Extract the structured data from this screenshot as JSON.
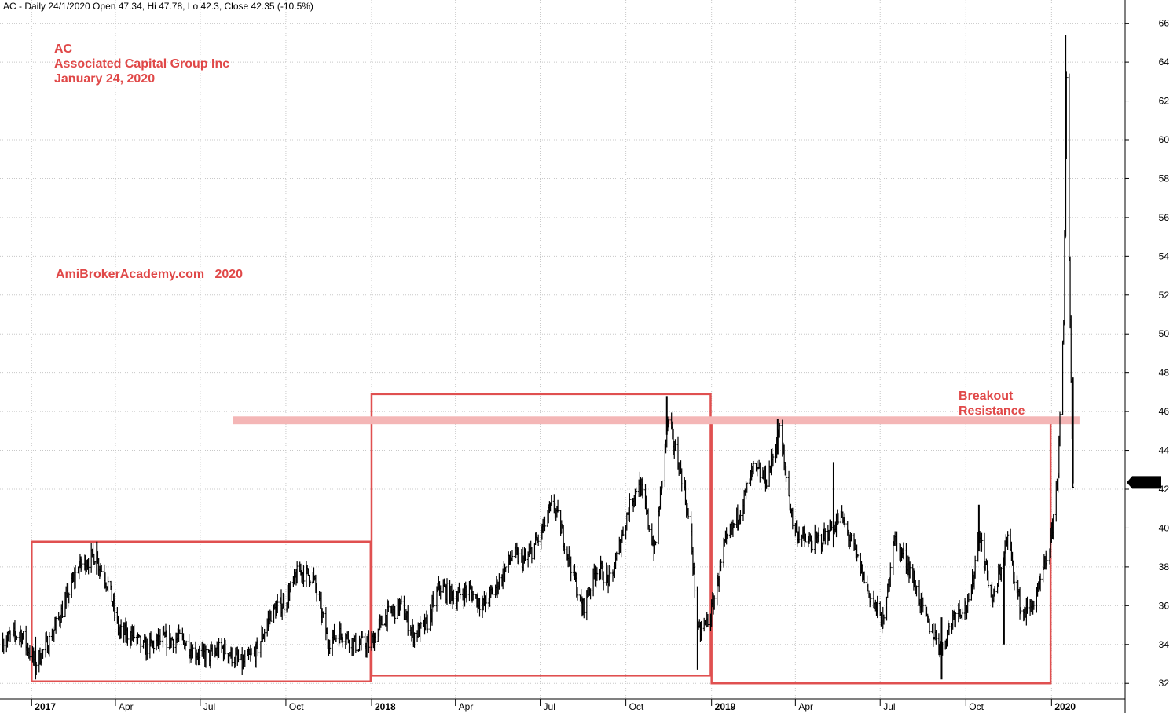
{
  "header": {
    "symbol": "AC",
    "info": "AC - Daily 24/1/2020 Open 47.34, Hi 47.78, Lo 42.3, Close 42.35 (-10.5%)"
  },
  "annotations": {
    "ticker": "AC",
    "company": "Associated Capital Group Inc",
    "date": "January 24, 2020",
    "watermark": "AmiBrokerAcademy.com   2020",
    "breakout": "Breakout",
    "resistance": "Resistance",
    "last_price_tag": "42.35"
  },
  "colors": {
    "price_bars": "#000000",
    "boxes": "#e05050",
    "resistance_band": "#f4b6b6",
    "grid": "#c8c8c8",
    "annotation_text": "#e04848",
    "price_tag_bg": "#000000",
    "price_tag_text": "#ffffff"
  },
  "chart_data": {
    "type": "ohlc",
    "title": "AC - Daily 24/1/2020 Open 47.34, Hi 47.78, Lo 42.3, Close 42.35 (-10.5%)",
    "x_range": [
      "2016-11-28",
      "2020-03-20"
    ],
    "ylim": [
      31.2,
      67.2
    ],
    "y_ticks": [
      32,
      34,
      36,
      38,
      40,
      42,
      44,
      46,
      48,
      50,
      52,
      54,
      56,
      58,
      60,
      62,
      64,
      66
    ],
    "y_axis_side": "right",
    "grid": true,
    "x_ticks": [
      {
        "date": "2017-01-01",
        "label": "2017",
        "year": true
      },
      {
        "date": "2017-04-01",
        "label": "Apr",
        "year": false
      },
      {
        "date": "2017-07-01",
        "label": "Jul",
        "year": false
      },
      {
        "date": "2017-10-01",
        "label": "Oct",
        "year": false
      },
      {
        "date": "2018-01-01",
        "label": "2018",
        "year": true
      },
      {
        "date": "2018-04-01",
        "label": "Apr",
        "year": false
      },
      {
        "date": "2018-07-01",
        "label": "Jul",
        "year": false
      },
      {
        "date": "2018-10-01",
        "label": "Oct",
        "year": false
      },
      {
        "date": "2019-01-01",
        "label": "2019",
        "year": true
      },
      {
        "date": "2019-04-01",
        "label": "Apr",
        "year": false
      },
      {
        "date": "2019-07-01",
        "label": "Jul",
        "year": false
      },
      {
        "date": "2019-10-01",
        "label": "Oct",
        "year": false
      },
      {
        "date": "2020-01-01",
        "label": "2020",
        "year": true
      }
    ],
    "price_path": [
      [
        "2016-12-01",
        34.2
      ],
      [
        "2016-12-20",
        34.6
      ],
      [
        "2017-01-05",
        33.0
      ],
      [
        "2017-01-20",
        34.2
      ],
      [
        "2017-02-05",
        36.0
      ],
      [
        "2017-02-20",
        38.0
      ],
      [
        "2017-03-10",
        38.6
      ],
      [
        "2017-03-25",
        37.0
      ],
      [
        "2017-04-05",
        34.6
      ],
      [
        "2017-04-20",
        34.5
      ],
      [
        "2017-05-01",
        33.8
      ],
      [
        "2017-05-20",
        34.2
      ],
      [
        "2017-06-10",
        34.3
      ],
      [
        "2017-06-25",
        33.6
      ],
      [
        "2017-07-10",
        33.4
      ],
      [
        "2017-07-25",
        33.8
      ],
      [
        "2017-08-15",
        33.0
      ],
      [
        "2017-08-30",
        33.6
      ],
      [
        "2017-09-15",
        35.6
      ],
      [
        "2017-09-30",
        36.2
      ],
      [
        "2017-10-15",
        37.8
      ],
      [
        "2017-10-30",
        37.5
      ],
      [
        "2017-11-15",
        34.2
      ],
      [
        "2017-11-30",
        34.6
      ],
      [
        "2017-12-15",
        34.0
      ],
      [
        "2017-12-31",
        34.0
      ],
      [
        "2018-01-15",
        35.4
      ],
      [
        "2018-02-01",
        36.0
      ],
      [
        "2018-02-15",
        34.5
      ],
      [
        "2018-03-01",
        35.0
      ],
      [
        "2018-03-15",
        37.0
      ],
      [
        "2018-04-01",
        36.4
      ],
      [
        "2018-04-15",
        36.8
      ],
      [
        "2018-05-01",
        36.0
      ],
      [
        "2018-05-15",
        37.0
      ],
      [
        "2018-06-01",
        38.6
      ],
      [
        "2018-06-15",
        38.3
      ],
      [
        "2018-07-01",
        39.6
      ],
      [
        "2018-07-15",
        41.3
      ],
      [
        "2018-08-01",
        38.5
      ],
      [
        "2018-08-15",
        35.8
      ],
      [
        "2018-08-31",
        38.0
      ],
      [
        "2018-09-15",
        37.2
      ],
      [
        "2018-10-01",
        40.5
      ],
      [
        "2018-10-15",
        42.5
      ],
      [
        "2018-11-01",
        38.8
      ],
      [
        "2018-11-15",
        45.5
      ],
      [
        "2018-12-01",
        42.5
      ],
      [
        "2018-12-10",
        39.5
      ],
      [
        "2018-12-18",
        34.5
      ],
      [
        "2018-12-31",
        35.5
      ],
      [
        "2019-01-15",
        39.0
      ],
      [
        "2019-02-01",
        41.0
      ],
      [
        "2019-02-15",
        43.0
      ],
      [
        "2019-03-01",
        42.5
      ],
      [
        "2019-03-15",
        45.0
      ],
      [
        "2019-03-30",
        40.0
      ],
      [
        "2019-04-15",
        39.2
      ],
      [
        "2019-05-01",
        39.5
      ],
      [
        "2019-05-20",
        40.6
      ],
      [
        "2019-06-05",
        38.6
      ],
      [
        "2019-06-20",
        36.5
      ],
      [
        "2019-07-05",
        35.0
      ],
      [
        "2019-07-15",
        39.5
      ],
      [
        "2019-08-01",
        38.0
      ],
      [
        "2019-08-20",
        35.2
      ],
      [
        "2019-09-05",
        33.8
      ],
      [
        "2019-09-20",
        35.8
      ],
      [
        "2019-10-05",
        36.0
      ],
      [
        "2019-10-15",
        39.8
      ],
      [
        "2019-10-30",
        36.2
      ],
      [
        "2019-11-15",
        39.5
      ],
      [
        "2019-11-30",
        35.5
      ],
      [
        "2019-12-15",
        36.2
      ],
      [
        "2019-12-31",
        39.2
      ],
      [
        "2020-01-08",
        43.0
      ],
      [
        "2020-01-14",
        50.5
      ],
      [
        "2020-01-17",
        63.5
      ],
      [
        "2020-01-20",
        54.0
      ],
      [
        "2020-01-22",
        47.5
      ],
      [
        "2020-01-24",
        42.35
      ]
    ],
    "spikes": [
      {
        "date": "2017-01-05",
        "low": 32.2,
        "high": 34.4
      },
      {
        "date": "2017-03-12",
        "low": 37.6,
        "high": 39.3
      },
      {
        "date": "2018-11-14",
        "low": 44.8,
        "high": 46.8
      },
      {
        "date": "2018-12-17",
        "low": 32.7,
        "high": 37.0
      },
      {
        "date": "2019-03-13",
        "low": 43.8,
        "high": 45.6
      },
      {
        "date": "2019-05-12",
        "low": 39.0,
        "high": 43.4
      },
      {
        "date": "2019-09-05",
        "low": 32.2,
        "high": 35.4
      },
      {
        "date": "2019-11-11",
        "low": 34.0,
        "high": 38.5
      },
      {
        "date": "2019-10-15",
        "low": 38.8,
        "high": 41.2
      },
      {
        "date": "2020-01-16",
        "low": 55.0,
        "high": 65.4
      },
      {
        "date": "2020-01-24",
        "low": 42.3,
        "high": 47.78
      }
    ],
    "last_bar": {
      "date": "2020-01-24",
      "open": 47.34,
      "high": 47.78,
      "low": 42.3,
      "close": 42.35
    },
    "boxes": [
      {
        "x0": "2017-01-01",
        "x1": "2017-12-31",
        "y0": 32.1,
        "y1": 39.3
      },
      {
        "x0": "2018-01-01",
        "x1": "2018-12-31",
        "y0": 32.4,
        "y1": 46.9
      },
      {
        "x0": "2019-01-01",
        "x1": "2019-12-31",
        "y0": 32.0,
        "y1": 45.6
      }
    ],
    "resistance_band": {
      "x0": "2017-08-05",
      "x1": "2020-01-31",
      "y0": 45.35,
      "y1": 45.75
    }
  }
}
